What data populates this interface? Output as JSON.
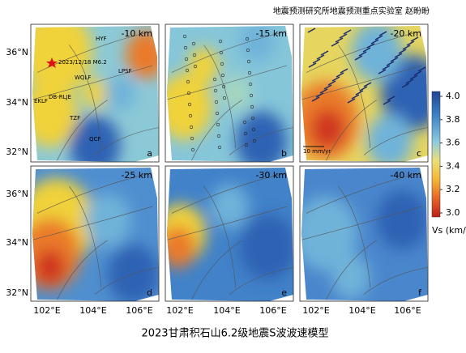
{
  "header": "地震预测研究所地震预测重点实验室 赵盼盼",
  "title": "2023甘肃积石山6.2级地震S波波速模型",
  "panels": [
    {
      "depth": "-10 km",
      "letter": "a"
    },
    {
      "depth": "-15 km",
      "letter": "b"
    },
    {
      "depth": "-20 km",
      "letter": "c"
    },
    {
      "depth": "-25 km",
      "letter": "d"
    },
    {
      "depth": "-30 km",
      "letter": "e"
    },
    {
      "depth": "-40 km",
      "letter": "f"
    }
  ],
  "event_label": "2023/12/18 M6.2",
  "fault_labels": [
    "HYF",
    "WQLF",
    "LPSF",
    "EKLF",
    "DB-RLJE",
    "TZF",
    "QCF"
  ],
  "scale_label": "10 mm/yr",
  "y_labels": [
    "36°N",
    "34°N",
    "32°N"
  ],
  "x_labels": [
    "102°E",
    "104°E",
    "106°E"
  ],
  "colorbar": {
    "label": "Vs (km/s)",
    "ticks": [
      "4.0",
      "3.8",
      "3.6",
      "3.4",
      "3.2",
      "3.0"
    ]
  }
}
